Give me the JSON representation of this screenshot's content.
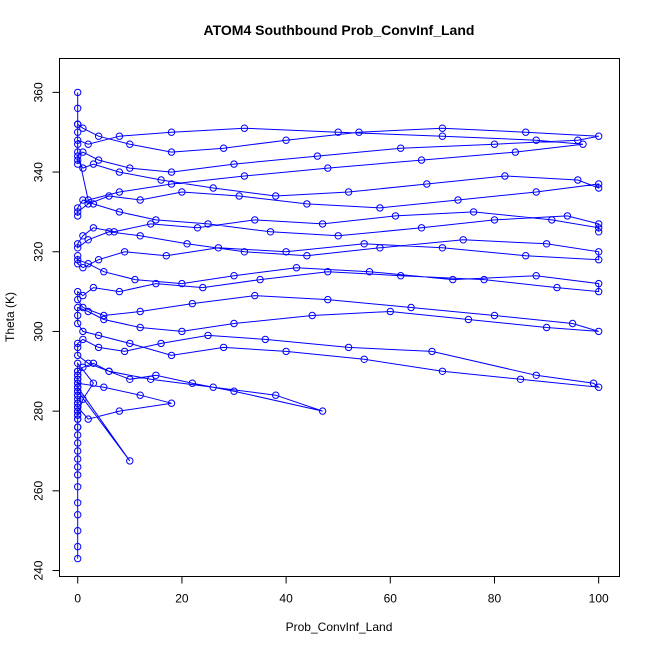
{
  "chart_data": {
    "type": "line",
    "title": "ATOM4 Southbound Prob_ConvInf_Land",
    "xlabel": "Prob_ConvInf_Land",
    "ylabel": "Theta (K)",
    "xlim": [
      -3.5,
      104
    ],
    "ylim": [
      238.5,
      368.5
    ],
    "x_ticks": [
      0,
      20,
      40,
      60,
      80,
      100
    ],
    "y_ticks": [
      240,
      260,
      280,
      300,
      320,
      340,
      360
    ],
    "x_tick_labels": [
      "0",
      "20",
      "40",
      "60",
      "80",
      "100"
    ],
    "y_tick_labels": [
      "240",
      "260",
      "280",
      "300",
      "320",
      "340",
      "360"
    ],
    "grid": false,
    "legend": "none",
    "marker": "open-circle",
    "color": "#0000ff",
    "series": [
      {
        "x": [
          0,
          0,
          0,
          0,
          0,
          0,
          0,
          0,
          0,
          0,
          0,
          0,
          0,
          0,
          0,
          0,
          0,
          0,
          0,
          0,
          10,
          0,
          0,
          0,
          0,
          3,
          1,
          0,
          0,
          0,
          0,
          0,
          0,
          0,
          0,
          0,
          0,
          5,
          12,
          18,
          8,
          2,
          0,
          0,
          0,
          0,
          0,
          0,
          1,
          3,
          6,
          10,
          15,
          22,
          30,
          47,
          38,
          26,
          14,
          6,
          2,
          0,
          0,
          0,
          1,
          4,
          9,
          16,
          25,
          36,
          52,
          68,
          88,
          99,
          100,
          85,
          70,
          55,
          40,
          28,
          18,
          10,
          4,
          1,
          0,
          0,
          0,
          2,
          5,
          12,
          20,
          30,
          45,
          60,
          75,
          90,
          100,
          95,
          80,
          64,
          48,
          34,
          22,
          12,
          5,
          1,
          0,
          0,
          1,
          3,
          8,
          15,
          24,
          35,
          48,
          62,
          78,
          92,
          100,
          100,
          88,
          72,
          56,
          42,
          30,
          20,
          11,
          5,
          2,
          0,
          0,
          0,
          1,
          4,
          9,
          17,
          27,
          40,
          55,
          70,
          86,
          100,
          100,
          90,
          74,
          58,
          44,
          32,
          21,
          12,
          6,
          2,
          0,
          0,
          1,
          3,
          7,
          14,
          23,
          34,
          47,
          61,
          76,
          91,
          100,
          100,
          100,
          94,
          80,
          66,
          50,
          37,
          25,
          15,
          8,
          3,
          1,
          0,
          0,
          0,
          2,
          6,
          12,
          20,
          31,
          44,
          58,
          73,
          88,
          100,
          100,
          96,
          82,
          67,
          52,
          38,
          26,
          16,
          8,
          3,
          1,
          0,
          0,
          0,
          1,
          4,
          10,
          18,
          30,
          46,
          62,
          80,
          96,
          100,
          86,
          70,
          54,
          40,
          28,
          18,
          10,
          4,
          1,
          0,
          0,
          0,
          2,
          8,
          18,
          32,
          50,
          70,
          88,
          97,
          84,
          66,
          48,
          32,
          18,
          8,
          2,
          0,
          0,
          0,
          0,
          0
        ],
        "y": [
          243,
          246,
          250,
          254,
          257,
          261,
          264,
          266,
          268,
          270,
          272,
          274,
          276,
          278,
          280,
          279,
          276,
          282,
          284,
          285,
          267.5,
          286,
          288,
          290,
          292,
          287,
          283,
          279,
          281,
          278,
          280,
          282,
          284,
          286,
          288,
          289,
          287,
          286,
          284,
          282,
          280,
          278,
          281,
          283,
          285,
          287,
          289,
          290,
          291,
          292,
          290,
          288,
          289,
          287,
          285,
          280,
          284,
          286,
          288,
          290,
          292,
          294,
          296,
          297,
          298,
          296,
          295,
          297,
          299,
          298,
          296,
          295,
          289,
          287,
          286,
          288,
          290,
          293,
          295,
          296,
          294,
          297,
          299,
          300,
          302,
          304,
          306,
          305,
          303,
          301,
          300,
          302,
          304,
          305,
          303,
          301,
          300,
          302,
          304,
          306,
          308,
          309,
          307,
          305,
          304,
          306,
          308,
          310,
          309,
          311,
          310,
          312,
          311,
          313,
          315,
          314,
          313,
          311,
          310,
          312,
          314,
          313,
          315,
          316,
          314,
          312,
          313,
          315,
          317,
          318,
          319,
          317,
          316,
          318,
          320,
          319,
          321,
          320,
          322,
          321,
          319,
          318,
          320,
          322,
          323,
          321,
          319,
          320,
          322,
          324,
          325,
          323,
          321,
          322,
          324,
          326,
          325,
          327,
          326,
          328,
          327,
          329,
          330,
          328,
          326,
          325,
          327,
          329,
          328,
          326,
          324,
          325,
          327,
          328,
          330,
          332,
          333,
          331,
          329,
          330,
          332,
          334,
          333,
          335,
          334,
          332,
          331,
          333,
          335,
          337,
          336,
          338,
          339,
          337,
          335,
          334,
          336,
          338,
          340,
          342,
          341,
          343,
          342,
          344,
          345,
          343,
          341,
          340,
          342,
          344,
          346,
          347,
          348,
          349,
          350,
          351,
          350,
          348,
          346,
          345,
          347,
          349,
          351,
          352,
          350,
          348,
          347,
          349,
          350,
          351,
          350,
          349,
          348,
          347,
          345,
          343,
          341,
          339,
          337,
          335,
          333,
          345,
          347,
          352,
          356,
          360
        ]
      }
    ]
  }
}
